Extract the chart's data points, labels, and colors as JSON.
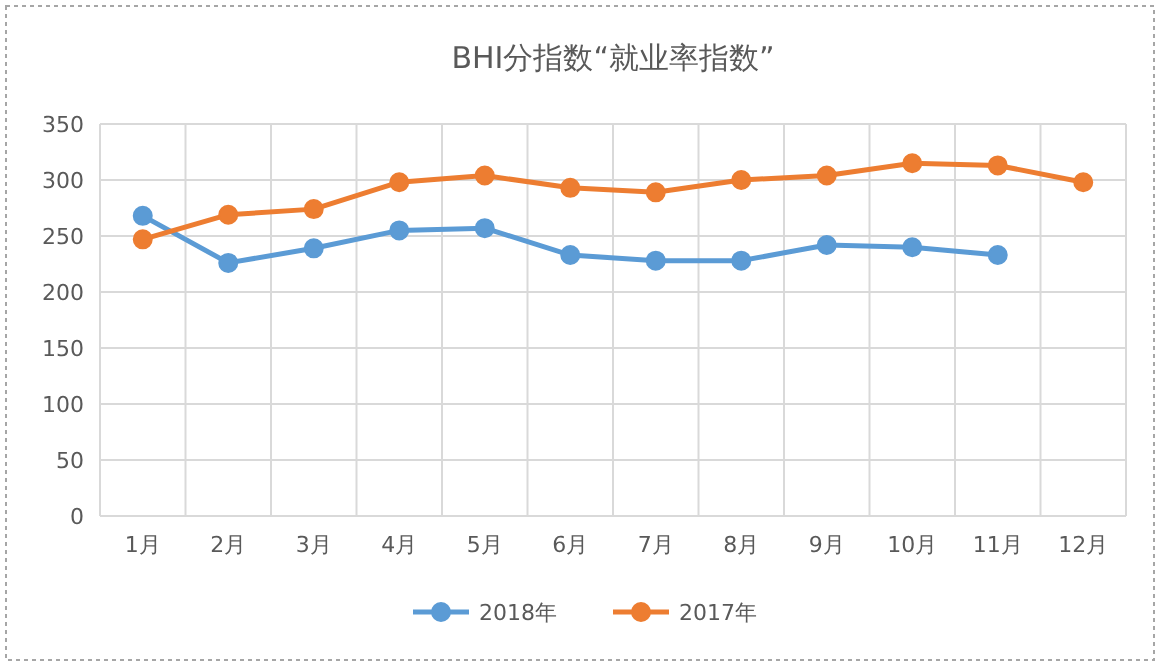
{
  "chart_data": {
    "type": "line",
    "title": "BHI分指数“就业率指数”",
    "categories": [
      "1月",
      "2月",
      "3月",
      "4月",
      "5月",
      "6月",
      "7月",
      "8月",
      "9月",
      "10月",
      "11月",
      "12月"
    ],
    "series": [
      {
        "name": "2018年",
        "color": "#5b9bd5",
        "values": [
          268,
          226,
          239,
          255,
          257,
          233,
          228,
          228,
          242,
          240,
          233,
          null
        ]
      },
      {
        "name": "2017年",
        "color": "#ed7d31",
        "values": [
          247,
          269,
          274,
          298,
          304,
          293,
          289,
          300,
          304,
          315,
          313,
          298
        ]
      }
    ],
    "ylim": [
      0,
      350
    ],
    "yticks": [
      0,
      50,
      100,
      150,
      200,
      250,
      300,
      350
    ],
    "grid": true,
    "legend": "bottom",
    "marker": "circle",
    "line_style": "solid"
  }
}
